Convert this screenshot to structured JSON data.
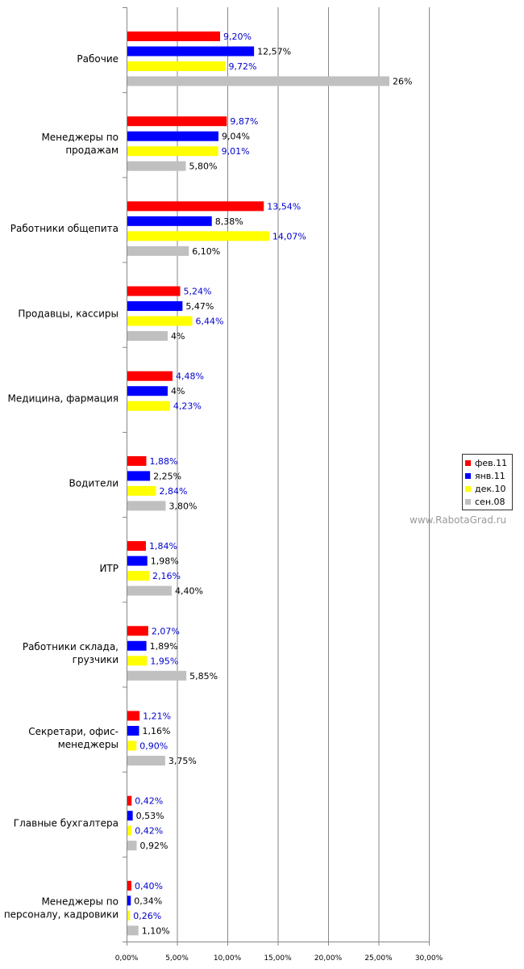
{
  "chart_data": {
    "type": "bar",
    "orientation": "horizontal",
    "categories": [
      [
        "Рабочие"
      ],
      [
        "Менеджеры по",
        "продажам"
      ],
      [
        "Работники общепита"
      ],
      [
        "Продавцы, кассиры"
      ],
      [
        "Медицина, фармация"
      ],
      [
        "Водители"
      ],
      [
        "ИТР"
      ],
      [
        "Работники склада,",
        "грузчики"
      ],
      [
        "Секретари, офис-",
        "менеджеры"
      ],
      [
        "Главные бухгалтера"
      ],
      [
        "Менеджеры по",
        "персоналу, кадровики"
      ]
    ],
    "series": [
      {
        "name": "фев.11",
        "color": "#ff0000",
        "label_color": "#0000cc",
        "values": [
          9.2,
          9.87,
          13.54,
          5.24,
          4.48,
          1.88,
          1.84,
          2.07,
          1.21,
          0.42,
          0.4
        ],
        "labels": [
          "9,20%",
          "9,87%",
          "13,54%",
          "5,24%",
          "4,48%",
          "1,88%",
          "1,84%",
          "2,07%",
          "1,21%",
          "0,42%",
          "0,40%"
        ]
      },
      {
        "name": "янв.11",
        "color": "#0000ff",
        "label_color": "#000000",
        "values": [
          12.57,
          9.04,
          8.38,
          5.47,
          4,
          2.25,
          1.98,
          1.89,
          1.16,
          0.53,
          0.34
        ],
        "labels": [
          "12,57%",
          "9,04%",
          "8,38%",
          "5,47%",
          "4%",
          "2,25%",
          "1,98%",
          "1,89%",
          "1,16%",
          "0,53%",
          "0,34%"
        ]
      },
      {
        "name": "дек.10",
        "color": "#ffff00",
        "label_color": "#0000cc",
        "values": [
          9.72,
          9.01,
          14.07,
          6.44,
          4.23,
          2.84,
          2.16,
          1.95,
          0.9,
          0.42,
          0.26
        ],
        "labels": [
          "9,72%",
          "9,01%",
          "14,07%",
          "6,44%",
          "4,23%",
          "2,84%",
          "2,16%",
          "1,95%",
          "0,90%",
          "0,42%",
          "0,26%"
        ]
      },
      {
        "name": "сен.08",
        "color": "#c0c0c0",
        "label_color": "#000000",
        "values": [
          26,
          5.8,
          6.1,
          4,
          null,
          3.8,
          4.4,
          5.85,
          3.75,
          0.92,
          1.1
        ],
        "labels": [
          "26%",
          "5,80%",
          "6,10%",
          "4%",
          "",
          "3,80%",
          "4,40%",
          "5,85%",
          "3,75%",
          "0,92%",
          "1,10%"
        ]
      }
    ],
    "xlim": [
      0,
      30
    ],
    "xticks": [
      0,
      5,
      10,
      15,
      20,
      25,
      30
    ],
    "xtick_labels": [
      "0,00%",
      "5,00%",
      "10,00%",
      "15,00%",
      "20,00%",
      "25,00%",
      "30,00%"
    ],
    "grid": "vertical",
    "legend_position": "right"
  },
  "watermark": "www.RabotaGrad.ru"
}
